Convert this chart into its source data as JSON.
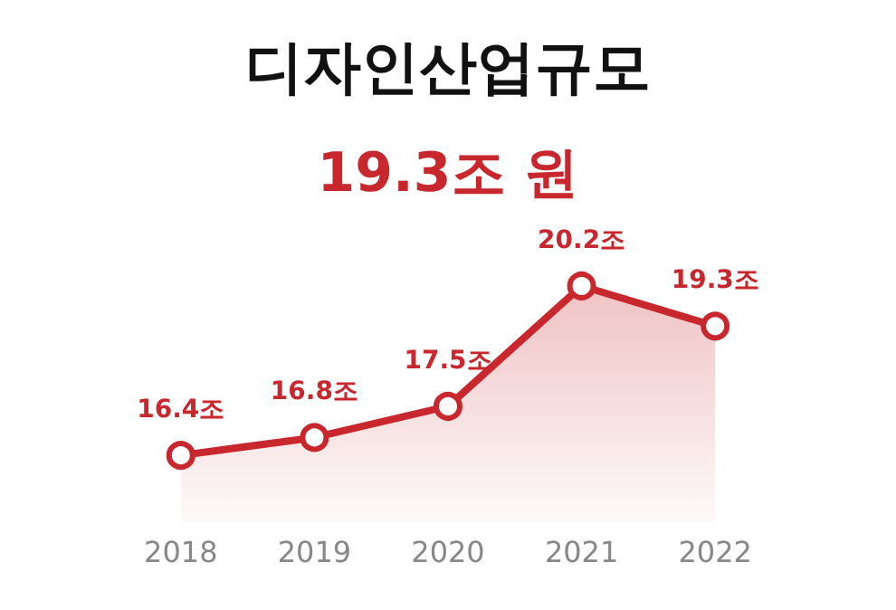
{
  "chart_data": {
    "type": "area",
    "title": "디자인산업규모",
    "subtitle": "19.3조 원",
    "categories": [
      "2018",
      "2019",
      "2020",
      "2021",
      "2022"
    ],
    "series": [
      {
        "color": "#c8282d",
        "values": [
          16.4,
          16.8,
          17.5,
          20.2,
          19.3
        ],
        "value_labels": [
          "16.4조",
          "16.8조",
          "17.5조",
          "20.2조",
          "19.3조"
        ]
      }
    ],
    "tick_labels": "x",
    "grid": false,
    "marker": "circle",
    "line_style": "solid"
  }
}
